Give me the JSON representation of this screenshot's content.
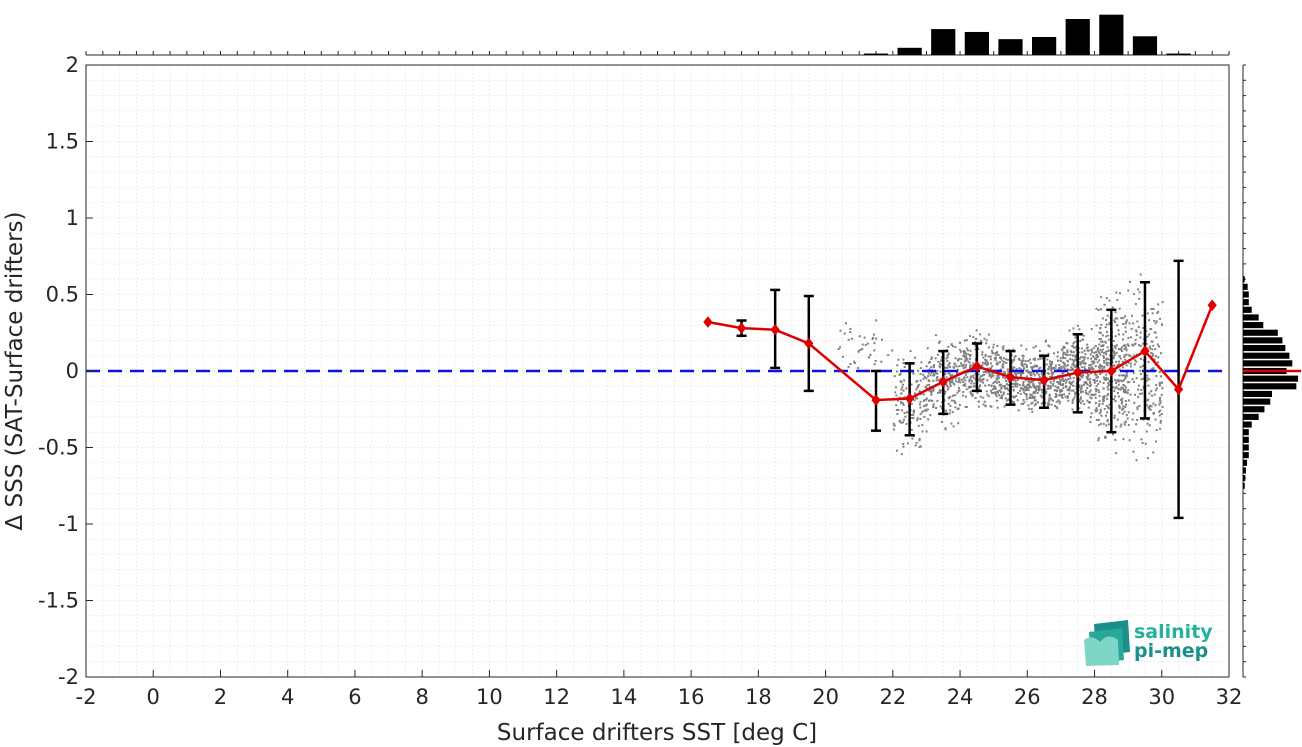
{
  "chart_data": {
    "type": "line",
    "title": "",
    "xlabel": "Surface drifters SST [deg C]",
    "ylabel": "Δ SSS (SAT-Surface drifters)",
    "xlim": [
      -2,
      32
    ],
    "ylim": [
      -2,
      2
    ],
    "x_ticks": [
      -2,
      0,
      2,
      4,
      6,
      8,
      10,
      12,
      14,
      16,
      18,
      20,
      22,
      24,
      26,
      28,
      30,
      32
    ],
    "y_ticks": [
      2,
      1.5,
      1,
      0.5,
      0,
      -0.5,
      -1,
      -1.5,
      -2
    ],
    "grid": true,
    "reference_line": {
      "y": 0,
      "style": "dashed",
      "color": "#1010dd"
    },
    "series": [
      {
        "x": [
          16.5,
          17.5,
          18.5,
          19.5,
          21.5,
          22.5,
          23.5,
          24.5,
          25.5,
          26.5,
          27.5,
          28.5,
          29.5,
          30.5,
          31.5
        ],
        "y": [
          0.32,
          0.28,
          0.27,
          0.18,
          -0.19,
          -0.18,
          -0.07,
          0.03,
          -0.04,
          -0.06,
          -0.01,
          0.0,
          0.13,
          -0.12,
          0.43
        ],
        "err_low": [
          null,
          0.23,
          0.02,
          -0.13,
          -0.39,
          -0.42,
          -0.28,
          -0.13,
          -0.22,
          -0.24,
          -0.27,
          -0.4,
          -0.31,
          -0.96,
          null
        ],
        "err_high": [
          null,
          0.33,
          0.53,
          0.49,
          0.0,
          0.05,
          0.13,
          0.18,
          0.13,
          0.1,
          0.24,
          0.4,
          0.58,
          0.72,
          null
        ],
        "color": "#dd0000"
      }
    ],
    "top_histogram": {
      "x": [
        21.5,
        22.5,
        23.5,
        24.5,
        25.5,
        26.5,
        27.5,
        28.5,
        29.5,
        30.5
      ],
      "counts": [
        0.04,
        0.2,
        0.72,
        0.64,
        0.44,
        0.5,
        1.0,
        1.12,
        0.52,
        0.04
      ]
    },
    "right_histogram": {
      "y": [
        0.6,
        0.55,
        0.5,
        0.45,
        0.4,
        0.35,
        0.3,
        0.25,
        0.2,
        0.15,
        0.1,
        0.05,
        0.0,
        -0.05,
        -0.1,
        -0.15,
        -0.2,
        -0.25,
        -0.3,
        -0.35,
        -0.4,
        -0.45,
        -0.5,
        -0.55,
        -0.6,
        -0.65,
        -0.7,
        -0.75
      ],
      "counts": [
        0.03,
        0.08,
        0.1,
        0.1,
        0.15,
        0.27,
        0.35,
        0.6,
        0.68,
        0.73,
        0.8,
        0.85,
        0.75,
        0.95,
        0.92,
        0.5,
        0.47,
        0.37,
        0.27,
        0.15,
        0.1,
        0.1,
        0.1,
        0.1,
        0.07,
        0.05,
        0.04,
        0.03
      ],
      "median_line_color": "#dd0000"
    },
    "scatter_color": "#808080"
  },
  "logo": {
    "line1": "salinity",
    "line2": "pi-mep"
  }
}
